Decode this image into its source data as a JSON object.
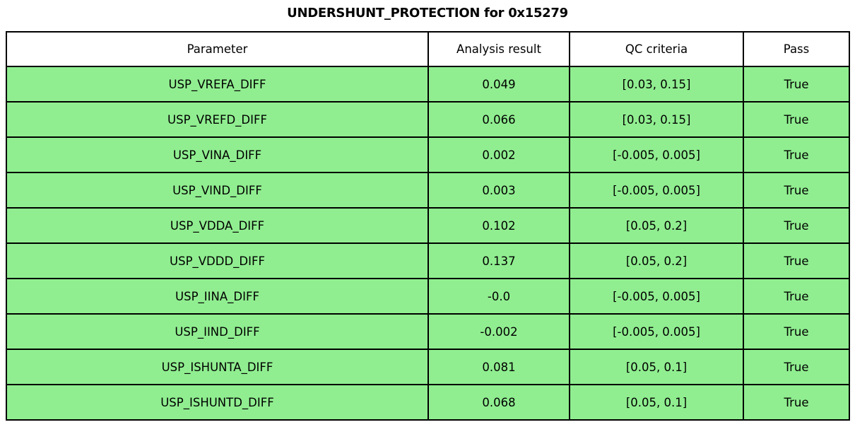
{
  "title": "UNDERSHUNT_PROTECTION for 0x15279",
  "colors": {
    "row_bg": "#90ee90",
    "header_bg": "#ffffff",
    "border": "#000000",
    "text": "#000000"
  },
  "chart_data": {
    "type": "table",
    "title": "UNDERSHUNT_PROTECTION for 0x15279",
    "columns": [
      "Parameter",
      "Analysis result",
      "QC criteria",
      "Pass"
    ],
    "rows": [
      {
        "parameter": "USP_VREFA_DIFF",
        "analysis_result": "0.049",
        "qc_criteria": "[0.03, 0.15]",
        "pass": "True"
      },
      {
        "parameter": "USP_VREFD_DIFF",
        "analysis_result": "0.066",
        "qc_criteria": "[0.03, 0.15]",
        "pass": "True"
      },
      {
        "parameter": "USP_VINA_DIFF",
        "analysis_result": "0.002",
        "qc_criteria": "[-0.005, 0.005]",
        "pass": "True"
      },
      {
        "parameter": "USP_VIND_DIFF",
        "analysis_result": "0.003",
        "qc_criteria": "[-0.005, 0.005]",
        "pass": "True"
      },
      {
        "parameter": "USP_VDDA_DIFF",
        "analysis_result": "0.102",
        "qc_criteria": "[0.05, 0.2]",
        "pass": "True"
      },
      {
        "parameter": "USP_VDDD_DIFF",
        "analysis_result": "0.137",
        "qc_criteria": "[0.05, 0.2]",
        "pass": "True"
      },
      {
        "parameter": "USP_IINA_DIFF",
        "analysis_result": "-0.0",
        "qc_criteria": "[-0.005, 0.005]",
        "pass": "True"
      },
      {
        "parameter": "USP_IIND_DIFF",
        "analysis_result": "-0.002",
        "qc_criteria": "[-0.005, 0.005]",
        "pass": "True"
      },
      {
        "parameter": "USP_ISHUNTA_DIFF",
        "analysis_result": "0.081",
        "qc_criteria": "[0.05, 0.1]",
        "pass": "True"
      },
      {
        "parameter": "USP_ISHUNTD_DIFF",
        "analysis_result": "0.068",
        "qc_criteria": "[0.05, 0.1]",
        "pass": "True"
      }
    ]
  }
}
